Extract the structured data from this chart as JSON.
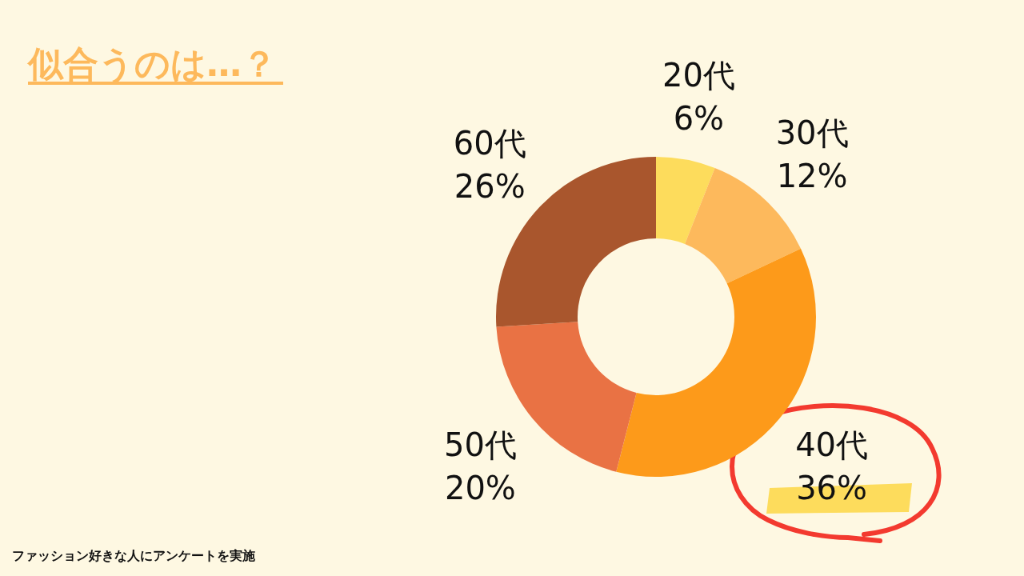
{
  "chart_data": {
    "type": "donut",
    "title": "似合うのは…？",
    "categories": [
      "20代",
      "30代",
      "40代",
      "50代",
      "60代"
    ],
    "values": [
      6,
      12,
      36,
      20,
      26
    ],
    "colors": [
      "#fddc5c",
      "#fdb95c",
      "#fd9a1a",
      "#e97244",
      "#a9562d"
    ],
    "value_labels": [
      "6%",
      "12%",
      "36%",
      "20%",
      "26%"
    ],
    "annotations": [
      "ファッション好きな人にアンケートを実施"
    ]
  }
}
